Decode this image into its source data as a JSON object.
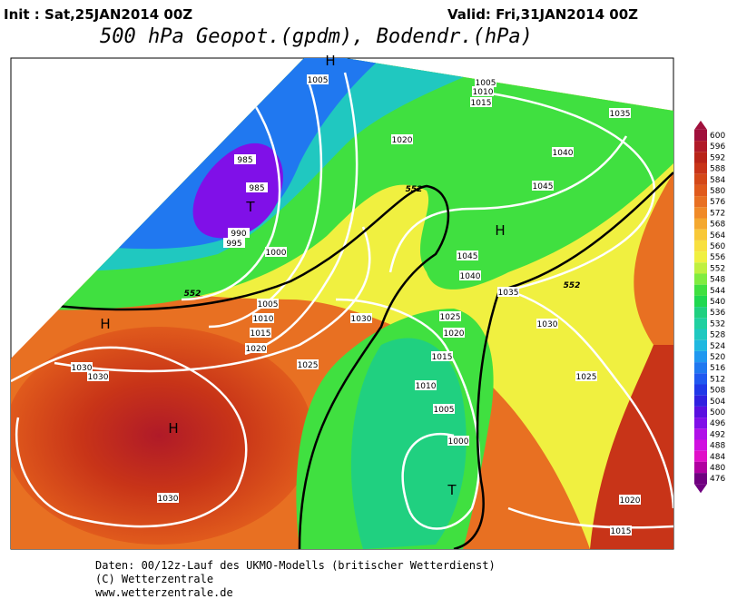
{
  "header": {
    "init": "Init : Sat,25JAN2014 00Z",
    "valid": "Valid: Fri,31JAN2014 00Z",
    "title": "500 hPa Geopot.(gpdm), Bodendr.(hPa)"
  },
  "legend": {
    "levels": [
      600,
      596,
      592,
      588,
      584,
      580,
      576,
      572,
      568,
      564,
      560,
      556,
      552,
      548,
      544,
      540,
      536,
      532,
      528,
      524,
      520,
      516,
      512,
      508,
      504,
      500,
      496,
      492,
      488,
      484,
      480,
      476
    ],
    "colors": [
      "#a0103c",
      "#b01a28",
      "#b82418",
      "#c83418",
      "#d44818",
      "#e05a1c",
      "#e87022",
      "#f08a28",
      "#f4a830",
      "#f8c838",
      "#f8e040",
      "#f0f040",
      "#c0f040",
      "#80ec40",
      "#40e040",
      "#20d850",
      "#20d080",
      "#20d0a0",
      "#20c8c0",
      "#20b8e0",
      "#2098f0",
      "#2078f0",
      "#2058f0",
      "#2038e8",
      "#3020e0",
      "#5a10e0",
      "#8010e8",
      "#b010e8",
      "#d010e0",
      "#e010c8",
      "#b000a0",
      "#700080"
    ]
  },
  "map": {
    "isobars": [
      "1005",
      "1005",
      "1010",
      "1015",
      "1035",
      "1020",
      "1040",
      "985",
      "985",
      "1045",
      "990",
      "995",
      "1000",
      "1045",
      "1040",
      "1035",
      "1005",
      "1010",
      "1015",
      "1030",
      "1025",
      "1020",
      "1030",
      "1020",
      "1030",
      "1030",
      "1025",
      "1015",
      "1025",
      "1010",
      "1005",
      "1000",
      "1030",
      "1020",
      "1015"
    ],
    "contours": [
      "552",
      "552",
      "552"
    ],
    "centers": [
      "H",
      "H",
      "H",
      "H",
      "T",
      "T"
    ]
  },
  "footer": {
    "source": "Daten: 00/12z-Lauf des UKMO-Modells (britischer Wetterdienst)",
    "copyright": "(C) Wetterzentrale",
    "url": "www.wetterzentrale.de"
  }
}
